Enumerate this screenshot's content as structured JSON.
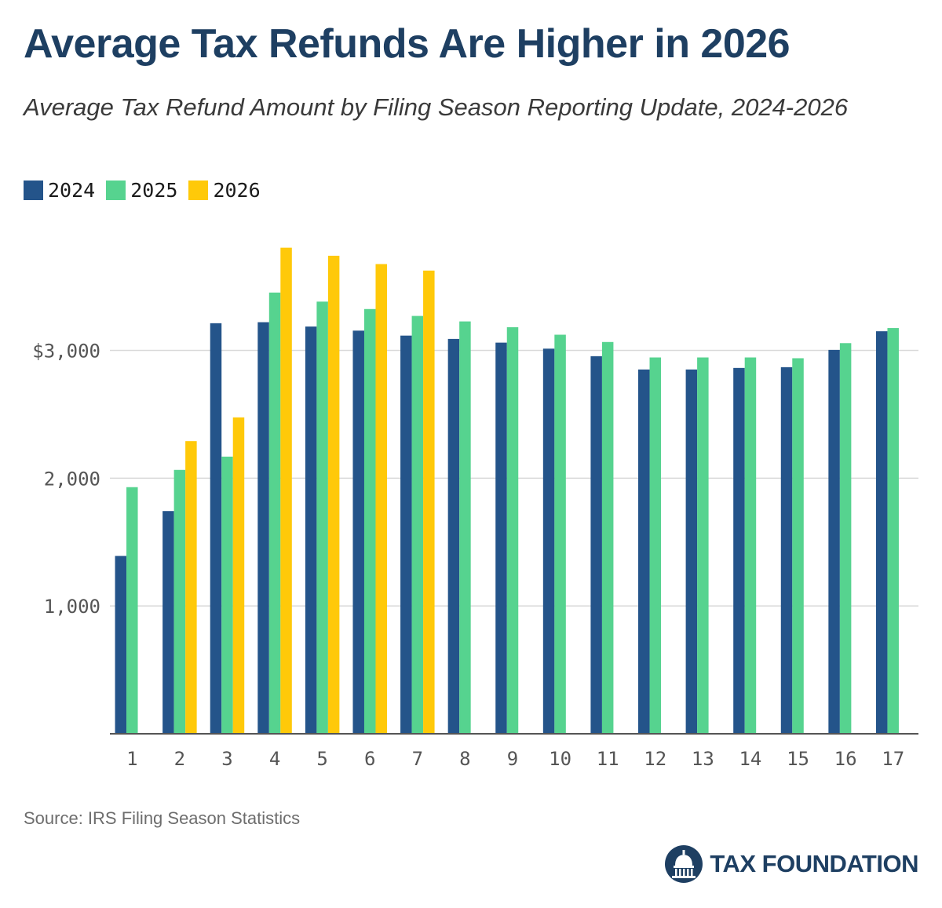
{
  "title": "Average Tax Refunds Are Higher in 2026",
  "subtitle": "Average Tax Refund Amount by Filing Season Reporting Update, 2024-2026",
  "source": "Source: IRS Filing Season Statistics",
  "brand": "TAX FOUNDATION",
  "logo_icon": "capitol-dome-icon",
  "colors": {
    "s2024": "#24548a",
    "s2025": "#56d38f",
    "s2026": "#ffc909",
    "grid": "#d9d9d9",
    "axis": "#555555",
    "brand": "#1e3f62"
  },
  "chart_data": {
    "type": "bar",
    "title": "Average Tax Refunds Are Higher in 2026",
    "subtitle": "Average Tax Refund Amount by Filing Season Reporting Update, 2024-2026",
    "xlabel": "",
    "ylabel": "",
    "ylim": [
      0,
      3900
    ],
    "yticks": [
      1000,
      2000,
      3000
    ],
    "ytick_labels": [
      "1,000",
      "2,000",
      "$3,000"
    ],
    "grid": true,
    "legend_position": "top-left",
    "categories": [
      "1",
      "2",
      "3",
      "4",
      "5",
      "6",
      "7",
      "8",
      "9",
      "10",
      "11",
      "12",
      "13",
      "14",
      "15",
      "16",
      "17"
    ],
    "series": [
      {
        "name": "2024",
        "values": [
          1392,
          1743,
          3213,
          3221,
          3187,
          3155,
          3116,
          3090,
          3061,
          3014,
          2955,
          2851,
          2851,
          2863,
          2869,
          3004,
          3150
        ]
      },
      {
        "name": "2025",
        "values": [
          1930,
          2065,
          2169,
          3453,
          3382,
          3324,
          3270,
          3227,
          3182,
          3123,
          3066,
          2945,
          2945,
          2945,
          2939,
          3057,
          3175
        ]
      },
      {
        "name": "2026",
        "values": [
          null,
          2290,
          2476,
          3804,
          3741,
          3676,
          3625,
          null,
          null,
          null,
          null,
          null,
          null,
          null,
          null,
          null,
          null
        ]
      }
    ]
  }
}
